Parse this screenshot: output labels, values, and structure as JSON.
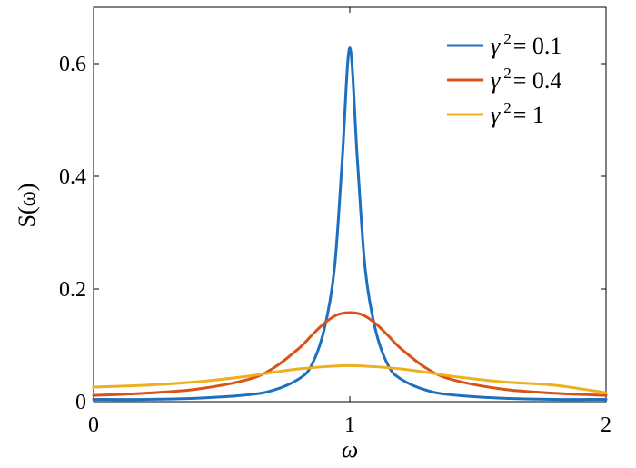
{
  "chart_data": {
    "type": "line",
    "xlabel": "ω",
    "ylabel": "S(ω)",
    "xlim": [
      0,
      2
    ],
    "ylim": [
      0,
      0.7
    ],
    "xticks": [
      {
        "value": 0,
        "label": "0"
      },
      {
        "value": 1,
        "label": "1"
      },
      {
        "value": 2,
        "label": "2"
      }
    ],
    "yticks": [
      {
        "value": 0,
        "label": "0"
      },
      {
        "value": 0.2,
        "label": "0.2"
      },
      {
        "value": 0.4,
        "label": "0.4"
      },
      {
        "value": 0.6,
        "label": "0.6"
      }
    ],
    "grid": false,
    "legend_position": "top-right",
    "series": [
      {
        "name": "γ² = 0.1",
        "legend": {
          "symbol": "γ",
          "sup": "2",
          "rest": "= 0.1"
        },
        "color": "#1f6fbf",
        "x": [
          0,
          0.2,
          0.4,
          0.6,
          0.7,
          0.8,
          0.85,
          0.9,
          0.94,
          0.97,
          1.0,
          1.03,
          1.06,
          1.1,
          1.15,
          1.2,
          1.3,
          1.4,
          1.6,
          1.8,
          2.0
        ],
        "y": [
          0.004,
          0.004,
          0.006,
          0.012,
          0.02,
          0.04,
          0.064,
          0.128,
          0.236,
          0.426,
          0.628,
          0.426,
          0.236,
          0.128,
          0.064,
          0.04,
          0.02,
          0.012,
          0.006,
          0.004,
          0.004
        ]
      },
      {
        "name": "γ² = 0.4",
        "legend": {
          "symbol": "γ",
          "sup": "2",
          "rest": "= 0.4"
        },
        "color": "#d95319",
        "x": [
          0,
          0.2,
          0.4,
          0.6,
          0.7,
          0.8,
          0.85,
          0.9,
          0.95,
          1.0,
          1.05,
          1.1,
          1.15,
          1.2,
          1.3,
          1.4,
          1.6,
          1.8,
          2.0
        ],
        "y": [
          0.011,
          0.015,
          0.022,
          0.039,
          0.059,
          0.094,
          0.117,
          0.139,
          0.154,
          0.158,
          0.154,
          0.139,
          0.117,
          0.094,
          0.059,
          0.039,
          0.022,
          0.015,
          0.011
        ]
      },
      {
        "name": "γ² = 1",
        "legend": {
          "symbol": "γ",
          "sup": "2",
          "rest": "= 1"
        },
        "color": "#edb120",
        "x": [
          0,
          0.2,
          0.4,
          0.6,
          0.7,
          0.8,
          0.9,
          1.0,
          1.1,
          1.2,
          1.3,
          1.4,
          1.6,
          1.8,
          2.0
        ],
        "y": [
          0.026,
          0.029,
          0.035,
          0.045,
          0.052,
          0.058,
          0.062,
          0.064,
          0.062,
          0.058,
          0.052,
          0.045,
          0.035,
          0.029,
          0.016
        ]
      }
    ]
  }
}
